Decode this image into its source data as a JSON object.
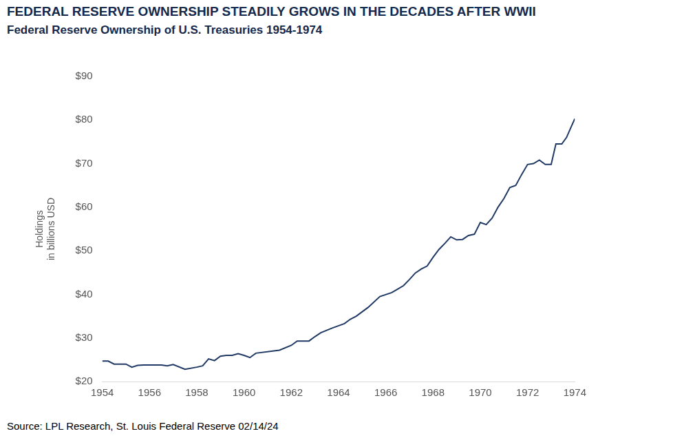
{
  "chart_data": {
    "type": "line",
    "title": "FEDERAL RESERVE OWNERSHIP STEADILY GROWS IN THE DECADES AFTER WWII",
    "subtitle": "Federal Reserve Ownership of U.S. Treasuries 1954-1974",
    "ylabel": "Holdings",
    "ylabel_note": "in billions USD",
    "source": "Source: LPL Research, St. Louis Federal Reserve 02/14/24",
    "x": [
      1954.0,
      1954.25,
      1954.5,
      1954.75,
      1955.0,
      1955.25,
      1955.5,
      1955.75,
      1956.0,
      1956.5,
      1956.75,
      1957.0,
      1957.5,
      1958.0,
      1958.25,
      1958.5,
      1958.75,
      1959.0,
      1959.25,
      1959.5,
      1959.75,
      1960.0,
      1960.25,
      1960.5,
      1961.5,
      1962.0,
      1962.25,
      1962.75,
      1963.0,
      1963.25,
      1963.75,
      1964.25,
      1964.5,
      1964.75,
      1965.25,
      1965.75,
      1966.25,
      1966.5,
      1966.75,
      1967.0,
      1967.25,
      1967.5,
      1967.75,
      1968.0,
      1968.25,
      1968.5,
      1968.75,
      1969.0,
      1969.25,
      1969.5,
      1969.75,
      1970.0,
      1970.25,
      1970.5,
      1970.75,
      1971.0,
      1971.25,
      1971.5,
      1971.75,
      1972.0,
      1972.25,
      1972.5,
      1972.75,
      1973.0,
      1973.2,
      1973.45,
      1973.65,
      1973.85,
      1974.0
    ],
    "series": [
      {
        "name": "Federal Reserve Ownership of U.S. Treasuries",
        "color": "#1f3864",
        "values": [
          24.7,
          24.7,
          24.0,
          24.0,
          24.0,
          23.3,
          23.7,
          23.8,
          23.8,
          23.8,
          23.6,
          23.9,
          22.8,
          23.3,
          23.6,
          25.2,
          24.8,
          25.8,
          26.0,
          26.0,
          26.4,
          26.0,
          25.5,
          26.5,
          27.2,
          28.3,
          29.3,
          29.3,
          30.3,
          31.2,
          32.3,
          33.3,
          34.3,
          35.0,
          37.0,
          39.5,
          40.4,
          41.2,
          42.0,
          43.4,
          44.9,
          45.8,
          46.5,
          48.5,
          50.3,
          51.7,
          53.2,
          52.5,
          52.6,
          53.5,
          53.8,
          56.5,
          56.0,
          57.5,
          60.0,
          62.0,
          64.5,
          65.0,
          67.5,
          69.8,
          70.0,
          70.8,
          69.8,
          69.8,
          74.5,
          74.5,
          76.0,
          78.5,
          80.3
        ]
      }
    ],
    "xlim": [
      1954,
      1974
    ],
    "xticks": [
      1954,
      1956,
      1958,
      1960,
      1962,
      1964,
      1966,
      1968,
      1970,
      1972,
      1974
    ],
    "ylim": [
      20,
      90
    ],
    "yticks": [
      {
        "value": 20,
        "label": "$20"
      },
      {
        "value": 30,
        "label": "$30"
      },
      {
        "value": 40,
        "label": "$40"
      },
      {
        "value": 50,
        "label": "$50"
      },
      {
        "value": 60,
        "label": "$60"
      },
      {
        "value": 70,
        "label": "$70"
      },
      {
        "value": 80,
        "label": "$80"
      },
      {
        "value": 90,
        "label": "$90"
      }
    ],
    "grid": false
  }
}
